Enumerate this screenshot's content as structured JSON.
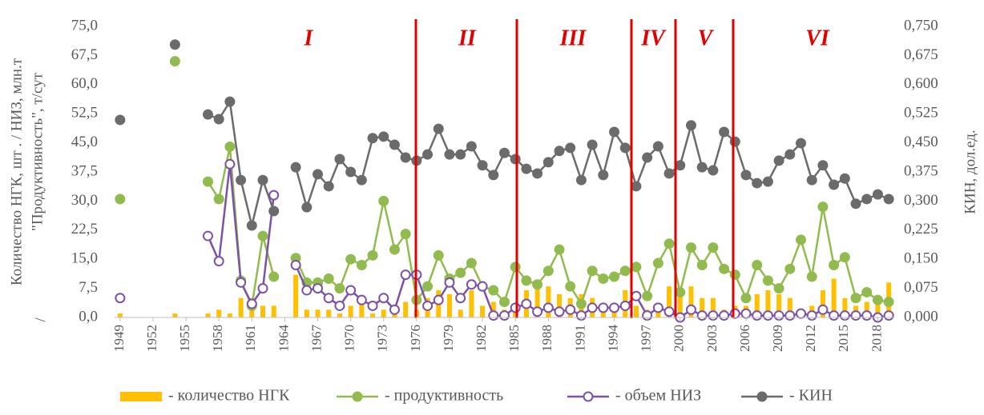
{
  "chart_data": {
    "type": "bar_line",
    "ylabel": [
      "Количество НГК, шт .  / НИЗ, млн.т",
      "\"Продуктивность\", т/сут",
      "/"
    ],
    "y2label": "КИН, дол.ед.",
    "periods": [
      "I",
      "II",
      "III",
      "IV",
      "V",
      "VI"
    ],
    "x": [
      1949,
      1950,
      1951,
      1952,
      1953,
      1954,
      1955,
      1956,
      1957,
      1958,
      1959,
      1960,
      1961,
      1962,
      1963,
      1964,
      1965,
      1966,
      1967,
      1968,
      1969,
      1970,
      1971,
      1972,
      1973,
      1974,
      1975,
      1976,
      1977,
      1978,
      1979,
      1980,
      1981,
      1982,
      1983,
      1984,
      1985,
      1986,
      1987,
      1988,
      1989,
      1990,
      1991,
      1992,
      1993,
      1994,
      1995,
      1996,
      1997,
      1998,
      1999,
      2000,
      2001,
      2002,
      2003,
      2004,
      2005,
      2006,
      2007,
      2008,
      2009,
      2010,
      2011,
      2012,
      2013,
      2014,
      2015,
      2016,
      2017,
      2018,
      2019
    ],
    "xlim": [
      1948.5,
      2019.5
    ],
    "xticks": [
      1949,
      1952,
      1955,
      1958,
      1961,
      1964,
      1967,
      1970,
      1973,
      1976,
      1979,
      1982,
      1985,
      1988,
      1991,
      1994,
      1997,
      2000,
      2003,
      2006,
      2009,
      2012,
      2015,
      2018
    ],
    "ylim": [
      0,
      75
    ],
    "yticks": [
      {
        "value": 0,
        "label": "0,0"
      },
      {
        "value": 7.5,
        "label": "7,5"
      },
      {
        "value": 15,
        "label": "15,0"
      },
      {
        "value": 22.5,
        "label": "22,5"
      },
      {
        "value": 30,
        "label": "30,0"
      },
      {
        "value": 37.5,
        "label": "37,5"
      },
      {
        "value": 45,
        "label": "45,0"
      },
      {
        "value": 52.5,
        "label": "52,5"
      },
      {
        "value": 60,
        "label": "60,0"
      },
      {
        "value": 67.5,
        "label": "67,5"
      },
      {
        "value": 75,
        "label": "75,0"
      }
    ],
    "y2lim": [
      0,
      0.75
    ],
    "y2ticks": [
      {
        "value": 0,
        "label": "0,000"
      },
      {
        "value": 0.075,
        "label": "0,075"
      },
      {
        "value": 0.15,
        "label": "0,150"
      },
      {
        "value": 0.225,
        "label": "0,225"
      },
      {
        "value": 0.3,
        "label": "0,300"
      },
      {
        "value": 0.375,
        "label": "0,375"
      },
      {
        "value": 0.45,
        "label": "0,450"
      },
      {
        "value": 0.525,
        "label": "0,525"
      },
      {
        "value": 0.6,
        "label": "0,600"
      },
      {
        "value": 0.675,
        "label": "0,675"
      },
      {
        "value": 0.75,
        "label": "0,750"
      }
    ],
    "series": [
      {
        "name": "- количество НГК",
        "type": "bar",
        "color": "#ffc000",
        "values": [
          1,
          null,
          null,
          null,
          null,
          1,
          null,
          null,
          1,
          2,
          1,
          5,
          5,
          3,
          3,
          null,
          11,
          2,
          2,
          2,
          1,
          3,
          4,
          1,
          2,
          1,
          4,
          2,
          5,
          7,
          6,
          2,
          7,
          3,
          4,
          2,
          2,
          7,
          8,
          8,
          6,
          5,
          6,
          5,
          2,
          3,
          7,
          3,
          2,
          3,
          8,
          7,
          8,
          5,
          5,
          2,
          3,
          3,
          6,
          7,
          6,
          5,
          2,
          3,
          7,
          10,
          5,
          3,
          4,
          4,
          9
        ]
      },
      {
        "name": "- продуктивность",
        "type": "line",
        "marker": "filled",
        "color": "#92bb4f",
        "values": [
          30.5,
          null,
          null,
          null,
          null,
          66,
          null,
          null,
          35,
          30.5,
          44,
          9.5,
          3,
          21,
          10.5,
          null,
          15.3,
          9,
          9,
          10,
          7.5,
          15,
          13.5,
          16,
          30,
          17.5,
          21.5,
          4.5,
          8,
          16,
          10,
          11.5,
          14,
          8,
          7,
          4,
          13,
          9.5,
          8.5,
          12,
          17.5,
          8,
          3.5,
          12,
          10,
          10.5,
          12,
          13,
          5.5,
          14,
          19,
          6.5,
          18,
          13.5,
          18,
          12.5,
          11,
          5,
          13.5,
          9.5,
          7.5,
          12.5,
          20,
          10.5,
          28.5,
          13.5,
          15.5,
          5,
          6.5,
          4.5,
          4
        ]
      },
      {
        "name": "- объем НИЗ",
        "type": "line",
        "marker": "open",
        "color": "#7b52a6",
        "values": [
          5,
          null,
          null,
          null,
          null,
          null,
          null,
          null,
          21,
          14.5,
          39.5,
          9,
          3.5,
          7.5,
          31.5,
          null,
          13.5,
          7,
          7.5,
          5,
          3,
          7,
          4.5,
          3,
          5,
          2,
          11,
          11,
          3,
          4.5,
          9,
          5,
          8.5,
          8,
          0.5,
          0.5,
          2.5,
          3.5,
          1.5,
          2.5,
          1.5,
          2,
          0.5,
          2.5,
          2.5,
          2.5,
          3,
          5.5,
          0.5,
          2.5,
          1.5,
          0,
          2,
          0.5,
          0.5,
          0.5,
          1,
          1,
          0.5,
          0.5,
          0.5,
          0.5,
          1,
          0.5,
          2,
          0.5,
          0.5,
          0.5,
          0.5,
          0,
          0.5
        ]
      },
      {
        "name": "- КИН",
        "type": "line",
        "marker": "filled",
        "axis": "y2",
        "color": "#6b6b6b",
        "values": [
          0.509,
          null,
          null,
          null,
          null,
          0.703,
          null,
          null,
          0.523,
          0.511,
          0.556,
          0.354,
          0.237,
          0.354,
          0.274,
          null,
          0.387,
          0.284,
          0.369,
          0.338,
          0.408,
          0.375,
          0.354,
          0.462,
          0.466,
          0.445,
          0.412,
          0.404,
          0.42,
          0.486,
          0.42,
          0.42,
          0.441,
          0.392,
          0.367,
          0.424,
          0.408,
          0.383,
          0.371,
          0.4,
          0.429,
          0.437,
          0.354,
          0.445,
          0.367,
          0.478,
          0.437,
          0.338,
          0.412,
          0.441,
          0.371,
          0.392,
          0.495,
          0.387,
          0.379,
          0.478,
          0.453,
          0.367,
          0.346,
          0.35,
          0.404,
          0.42,
          0.449,
          0.354,
          0.392,
          0.342,
          0.358,
          0.293,
          0.305,
          0.317,
          0.305
        ]
      }
    ]
  }
}
